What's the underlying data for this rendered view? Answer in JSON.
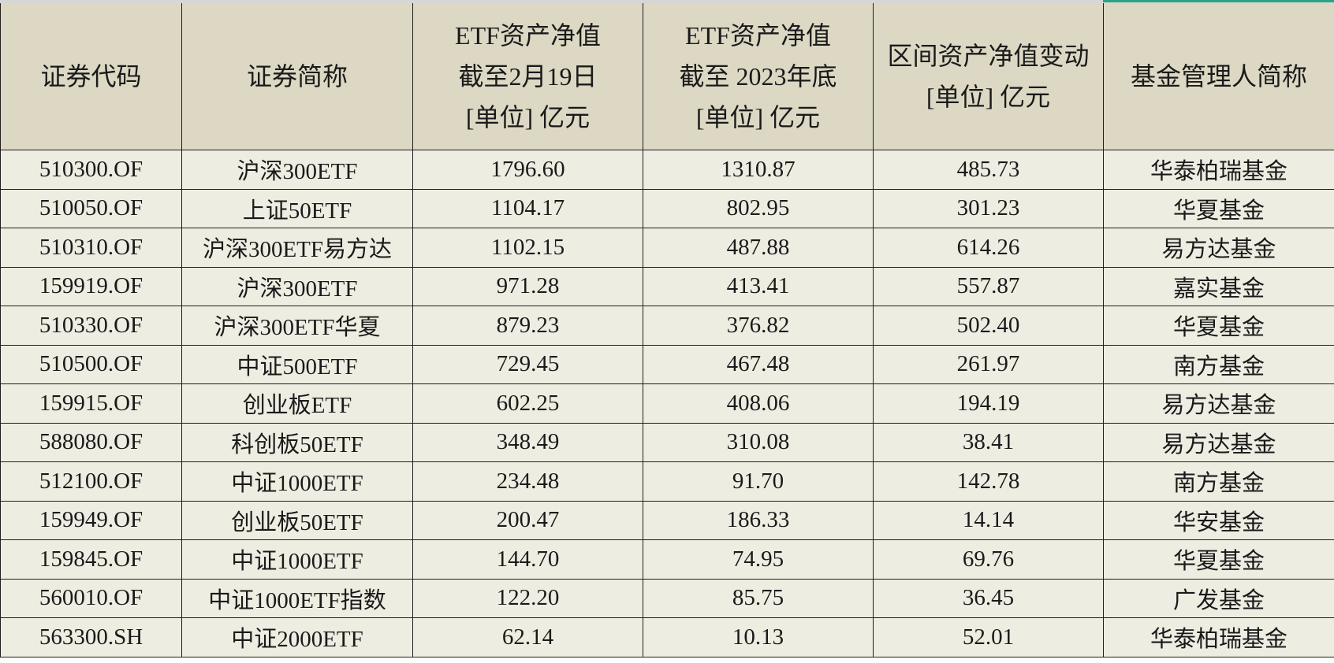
{
  "table": {
    "header": [
      [
        "证券代码"
      ],
      [
        "证券简称"
      ],
      [
        "ETF资产净值",
        "截至2月19日",
        "[单位] 亿元"
      ],
      [
        "ETF资产净值",
        "截至 2023年底",
        "[单位] 亿元"
      ],
      [
        "区间资产净值变动",
        "[单位] 亿元"
      ],
      [
        "基金管理人简称"
      ]
    ],
    "rows": [
      [
        "510300.OF",
        "沪深300ETF",
        "1796.60",
        "1310.87",
        "485.73",
        "华泰柏瑞基金"
      ],
      [
        "510050.OF",
        "上证50ETF",
        "1104.17",
        "802.95",
        "301.23",
        "华夏基金"
      ],
      [
        "510310.OF",
        "沪深300ETF易方达",
        "1102.15",
        "487.88",
        "614.26",
        "易方达基金"
      ],
      [
        "159919.OF",
        "沪深300ETF",
        "971.28",
        "413.41",
        "557.87",
        "嘉实基金"
      ],
      [
        "510330.OF",
        "沪深300ETF华夏",
        "879.23",
        "376.82",
        "502.40",
        "华夏基金"
      ],
      [
        "510500.OF",
        "中证500ETF",
        "729.45",
        "467.48",
        "261.97",
        "南方基金"
      ],
      [
        "159915.OF",
        "创业板ETF",
        "602.25",
        "408.06",
        "194.19",
        "易方达基金"
      ],
      [
        "588080.OF",
        "科创板50ETF",
        "348.49",
        "310.08",
        "38.41",
        "易方达基金"
      ],
      [
        "512100.OF",
        "中证1000ETF",
        "234.48",
        "91.70",
        "142.78",
        "南方基金"
      ],
      [
        "159949.OF",
        "创业板50ETF",
        "200.47",
        "186.33",
        "14.14",
        "华安基金"
      ],
      [
        "159845.OF",
        "中证1000ETF",
        "144.70",
        "74.95",
        "69.76",
        "华夏基金"
      ],
      [
        "560010.OF",
        "中证1000ETF指数",
        "122.20",
        "85.75",
        "36.45",
        "广发基金"
      ],
      [
        "563300.SH",
        "中证2000ETF",
        "62.14",
        "10.13",
        "52.01",
        "华泰柏瑞基金"
      ]
    ]
  }
}
